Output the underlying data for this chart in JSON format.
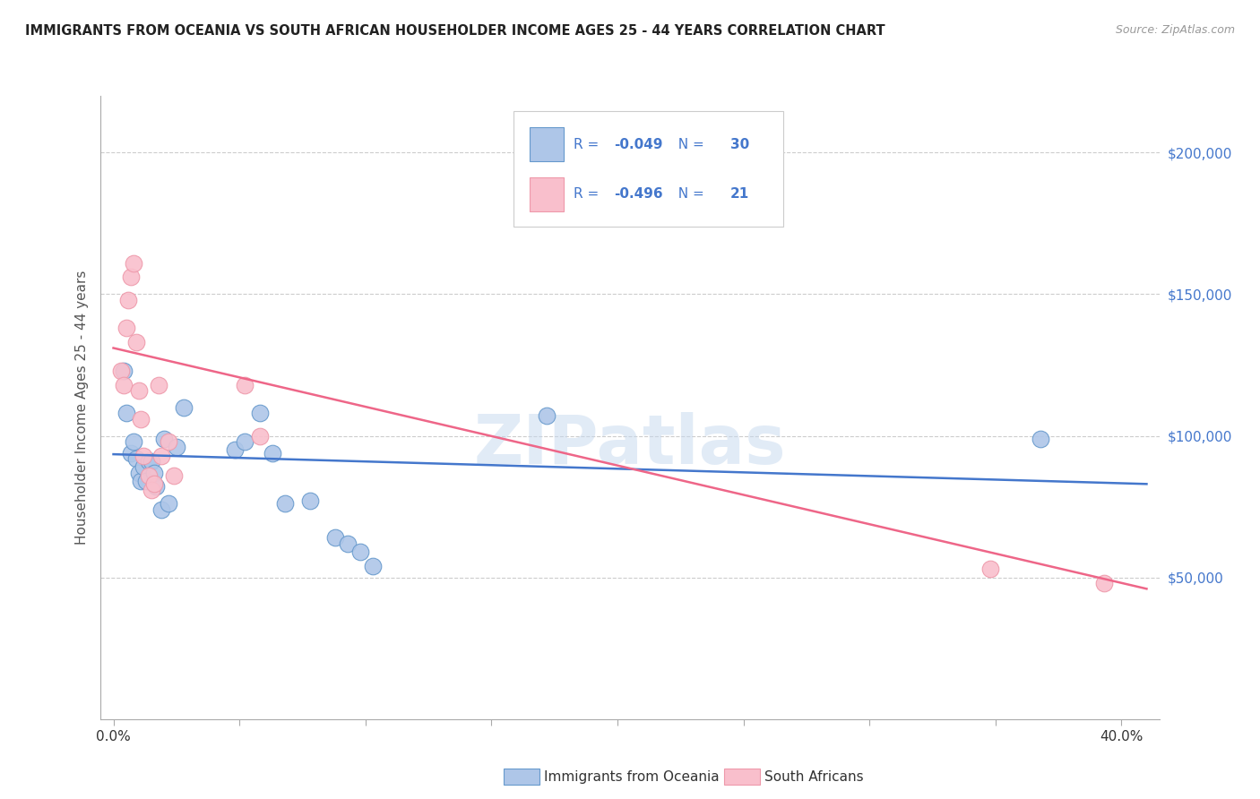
{
  "title": "IMMIGRANTS FROM OCEANIA VS SOUTH AFRICAN HOUSEHOLDER INCOME AGES 25 - 44 YEARS CORRELATION CHART",
  "source": "Source: ZipAtlas.com",
  "ylabel": "Householder Income Ages 25 - 44 years",
  "legend_label1": "Immigrants from Oceania",
  "legend_label2": "South Africans",
  "R1": "-0.049",
  "N1": "30",
  "R2": "-0.496",
  "N2": "21",
  "watermark": "ZIPatlas",
  "blue_fill": "#aec6e8",
  "pink_fill": "#f9bfcc",
  "blue_edge": "#6699cc",
  "pink_edge": "#ee99aa",
  "blue_line_color": "#4477cc",
  "pink_line_color": "#ee6688",
  "right_axis_color": "#4477cc",
  "legend_text_color": "#4477cc",
  "y_ticks_right": [
    50000,
    100000,
    150000,
    200000
  ],
  "y_tick_labels_right": [
    "$50,000",
    "$100,000",
    "$150,000",
    "$200,000"
  ],
  "xlim": [
    -0.005,
    0.415
  ],
  "ylim": [
    0,
    220000
  ],
  "blue_scatter_x": [
    0.004,
    0.005,
    0.007,
    0.008,
    0.009,
    0.01,
    0.011,
    0.012,
    0.013,
    0.014,
    0.015,
    0.016,
    0.017,
    0.019,
    0.02,
    0.022,
    0.025,
    0.028,
    0.048,
    0.052,
    0.058,
    0.063,
    0.068,
    0.078,
    0.088,
    0.093,
    0.098,
    0.103,
    0.172,
    0.368
  ],
  "blue_scatter_y": [
    123000,
    108000,
    94000,
    98000,
    92000,
    87000,
    84000,
    89000,
    84000,
    91000,
    91000,
    87000,
    82000,
    74000,
    99000,
    76000,
    96000,
    110000,
    95000,
    98000,
    108000,
    94000,
    76000,
    77000,
    64000,
    62000,
    59000,
    54000,
    107000,
    99000
  ],
  "pink_scatter_x": [
    0.003,
    0.004,
    0.005,
    0.006,
    0.007,
    0.008,
    0.009,
    0.01,
    0.011,
    0.012,
    0.014,
    0.015,
    0.016,
    0.018,
    0.019,
    0.022,
    0.024,
    0.052,
    0.058,
    0.348,
    0.393
  ],
  "pink_scatter_y": [
    123000,
    118000,
    138000,
    148000,
    156000,
    161000,
    133000,
    116000,
    106000,
    93000,
    86000,
    81000,
    83000,
    118000,
    93000,
    98000,
    86000,
    118000,
    100000,
    53000,
    48000
  ],
  "blue_trend_x": [
    0.0,
    0.41
  ],
  "blue_trend_y": [
    93500,
    83000
  ],
  "pink_trend_x": [
    0.0,
    0.41
  ],
  "pink_trend_y": [
    131000,
    46000
  ],
  "marker_size": 180,
  "background_color": "#ffffff",
  "grid_color": "#cccccc",
  "spine_color": "#aaaaaa"
}
